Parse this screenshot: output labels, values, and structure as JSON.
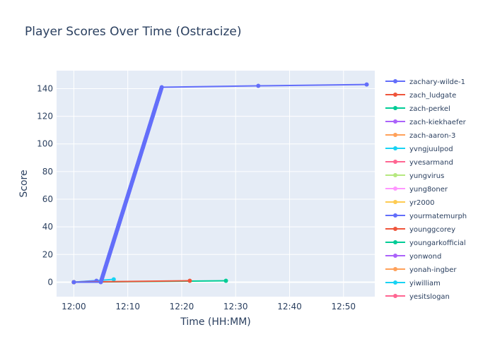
{
  "chart_data": {
    "type": "line",
    "title": "Player Scores Over Time (Ostracize)",
    "xlabel": "Time (HH:MM)",
    "ylabel": "Score",
    "x_unit": "time of day (minutes past 12:00)",
    "xlim": [
      -3.2,
      55.8
    ],
    "ylim": [
      -10.5,
      153
    ],
    "x_ticks": [
      {
        "value": 0,
        "label": "12:00"
      },
      {
        "value": 10,
        "label": "12:10"
      },
      {
        "value": 20,
        "label": "12:20"
      },
      {
        "value": 30,
        "label": "12:30"
      },
      {
        "value": 40,
        "label": "12:40"
      },
      {
        "value": 50,
        "label": "12:50"
      }
    ],
    "y_ticks": [
      0,
      20,
      40,
      60,
      80,
      100,
      120,
      140
    ],
    "grid": true,
    "legend_placement": "right",
    "plot_bg": "#e5ecf6",
    "series": [
      {
        "name": "zachary-wilde-1",
        "color": "#636efa",
        "x": [
          0,
          5,
          16.3,
          34.2,
          54.3
        ],
        "y": [
          0,
          0,
          141,
          142,
          143
        ],
        "dense_markers": true
      },
      {
        "name": "zach_ludgate",
        "color": "#ef553b",
        "x": [
          0,
          21.5
        ],
        "y": [
          0,
          1
        ]
      },
      {
        "name": "zach-perkel",
        "color": "#00cc96",
        "x": [
          0,
          28.2
        ],
        "y": [
          0,
          1
        ]
      },
      {
        "name": "zach-kiekhaefer",
        "color": "#ab63fa",
        "x": [
          0
        ],
        "y": [
          0
        ]
      },
      {
        "name": "zach-aaron-3",
        "color": "#ffa15a",
        "x": [
          0
        ],
        "y": [
          0
        ]
      },
      {
        "name": "yvngjuulpod",
        "color": "#19d3f3",
        "x": [
          0
        ],
        "y": [
          0
        ]
      },
      {
        "name": "yvesarmand",
        "color": "#ff6692",
        "x": [
          0
        ],
        "y": [
          0
        ]
      },
      {
        "name": "yungvirus",
        "color": "#b6e880",
        "x": [
          0
        ],
        "y": [
          0
        ]
      },
      {
        "name": "yung8oner",
        "color": "#ff97ff",
        "x": [
          0
        ],
        "y": [
          0
        ]
      },
      {
        "name": "yr2000",
        "color": "#fecb52",
        "x": [
          0
        ],
        "y": [
          0
        ]
      },
      {
        "name": "yourmatemurph",
        "color": "#636efa",
        "x": [
          0,
          4.2
        ],
        "y": [
          0,
          1
        ]
      },
      {
        "name": "younggcorey",
        "color": "#ef553b",
        "x": [
          0
        ],
        "y": [
          0
        ]
      },
      {
        "name": "youngarkofficial",
        "color": "#00cc96",
        "x": [
          0
        ],
        "y": [
          0
        ]
      },
      {
        "name": "yonwond",
        "color": "#ab63fa",
        "x": [
          0
        ],
        "y": [
          0
        ]
      },
      {
        "name": "yonah-ingber",
        "color": "#ffa15a",
        "x": [
          0
        ],
        "y": [
          0
        ]
      },
      {
        "name": "yiwilliam",
        "color": "#19d3f3",
        "x": [
          0,
          7.4
        ],
        "y": [
          0,
          2
        ]
      },
      {
        "name": "yesitslogan",
        "color": "#ff6692",
        "x": [
          0
        ],
        "y": [
          0
        ]
      }
    ]
  }
}
